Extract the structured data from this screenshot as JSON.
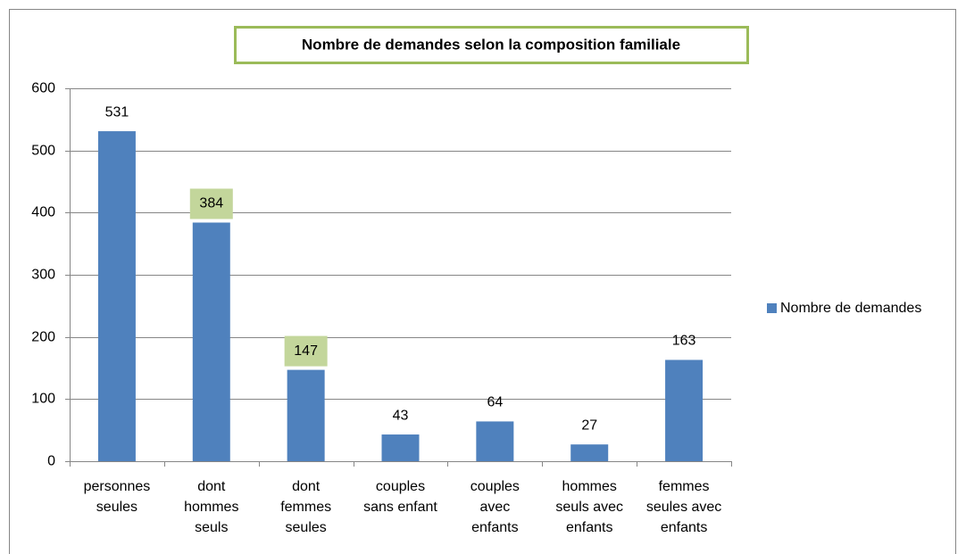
{
  "chart_data": {
    "type": "bar",
    "title": "Nombre de demandes selon la composition familiale",
    "categories": [
      "personnes\nseules",
      "dont\nhommes\nseuls",
      "dont\nfemmes\nseules",
      "couples\nsans enfant",
      "couples\navec\nenfants",
      "hommes\nseuls avec\nenfants",
      "femmes\nseules avec\nenfants"
    ],
    "series": [
      {
        "name": "Nombre de demandes",
        "color": "#4f81bd",
        "values": [
          531,
          384,
          147,
          43,
          64,
          27,
          163
        ]
      }
    ],
    "highlighted_labels": [
      false,
      true,
      true,
      false,
      false,
      false,
      false
    ],
    "highlight_color": "#c3d69b",
    "ylim": [
      0,
      600
    ],
    "yticks": [
      0,
      100,
      200,
      300,
      400,
      500,
      600
    ],
    "grid": true,
    "legend": "right"
  }
}
